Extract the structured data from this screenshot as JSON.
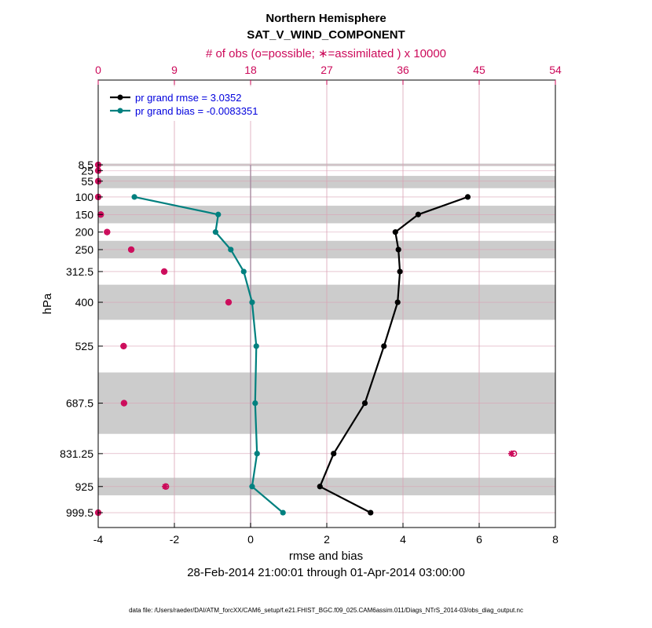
{
  "chart_data": {
    "type": "line",
    "title": "Northern Hemisphere",
    "subtitle": "SAT_V_WIND_COMPONENT",
    "top_axis_label": "# of obs (o=possible; ∗=assimilated ) x 10000",
    "xlabel": "rmse and bias",
    "ylabel": "hPa",
    "date_range": "28-Feb-2014 21:00:01 through 01-Apr-2014 03:00:00",
    "footnote": "data file: /Users/raeder/DAI/ATM_forcXX/CAM6_setup/f.e21.FHIST_BGC.f09_025.CAM6assim.011/Diags_NTrS_2014-03/obs_diag_output.nc",
    "xlim": [
      -4,
      8
    ],
    "top_xlim": [
      0,
      54
    ],
    "x_ticks": [
      -4,
      -2,
      0,
      2,
      4,
      6,
      8
    ],
    "x_tick_labels": [
      "-4",
      "-2",
      "0",
      "2",
      "4",
      "6",
      "8"
    ],
    "top_ticks": [
      0,
      9,
      18,
      27,
      36,
      45,
      54
    ],
    "top_tick_labels": [
      "0",
      "9",
      "18",
      "27",
      "36",
      "45",
      "54"
    ],
    "levels": [
      8.5,
      25,
      55,
      100,
      150,
      200,
      250,
      312.5,
      400,
      525,
      687.5,
      831.25,
      925,
      999.5
    ],
    "level_labels": [
      "8.5",
      "25",
      "55",
      "100",
      "150",
      "200",
      "250",
      "312.5",
      "400",
      "525",
      "687.5",
      "831.25",
      "925",
      "999.5"
    ],
    "series": [
      {
        "name": "pr grand rmse = 3.0352",
        "color": "#000000",
        "levels": [
          100,
          150,
          200,
          250,
          312.5,
          400,
          525,
          687.5,
          831.25,
          925,
          999.5
        ],
        "values": [
          5.7,
          4.4,
          3.8,
          3.88,
          3.92,
          3.86,
          3.5,
          3.0,
          2.18,
          1.82,
          3.15
        ]
      },
      {
        "name": "pr grand bias = -0.0083351",
        "color": "#00807f",
        "levels": [
          100,
          150,
          200,
          250,
          312.5,
          400,
          525,
          687.5,
          831.25,
          925,
          999.5
        ],
        "values": [
          -3.05,
          -0.85,
          -0.92,
          -0.52,
          -0.18,
          0.04,
          0.15,
          0.12,
          0.17,
          0.04,
          0.85
        ]
      }
    ],
    "obs_possible": {
      "color": "#cc0a5a",
      "levels": [
        8.5,
        25,
        55,
        100,
        150,
        200,
        250,
        312.5,
        400,
        525,
        687.5,
        831.25,
        925,
        999.5
      ],
      "values": [
        0.0,
        0.0,
        0.0,
        0.0,
        0.3,
        1.05,
        3.9,
        7.8,
        15.4,
        3.0,
        3.05,
        49.1,
        8.0,
        0.0
      ]
    },
    "obs_assimilated": {
      "color": "#cc0a5a",
      "levels": [
        8.5,
        25,
        55,
        100,
        150,
        200,
        250,
        312.5,
        400,
        525,
        687.5,
        831.25,
        925,
        999.5
      ],
      "values": [
        0.0,
        0.0,
        0.0,
        0.0,
        0.3,
        1.05,
        3.9,
        7.8,
        15.4,
        3.0,
        3.05,
        48.8,
        7.9,
        0.0
      ]
    },
    "shaded_level_bands": [
      [
        5,
        12
      ],
      [
        40,
        75
      ],
      [
        125,
        175
      ],
      [
        225,
        275
      ],
      [
        350,
        450
      ],
      [
        600,
        775
      ],
      [
        900,
        950
      ]
    ]
  }
}
